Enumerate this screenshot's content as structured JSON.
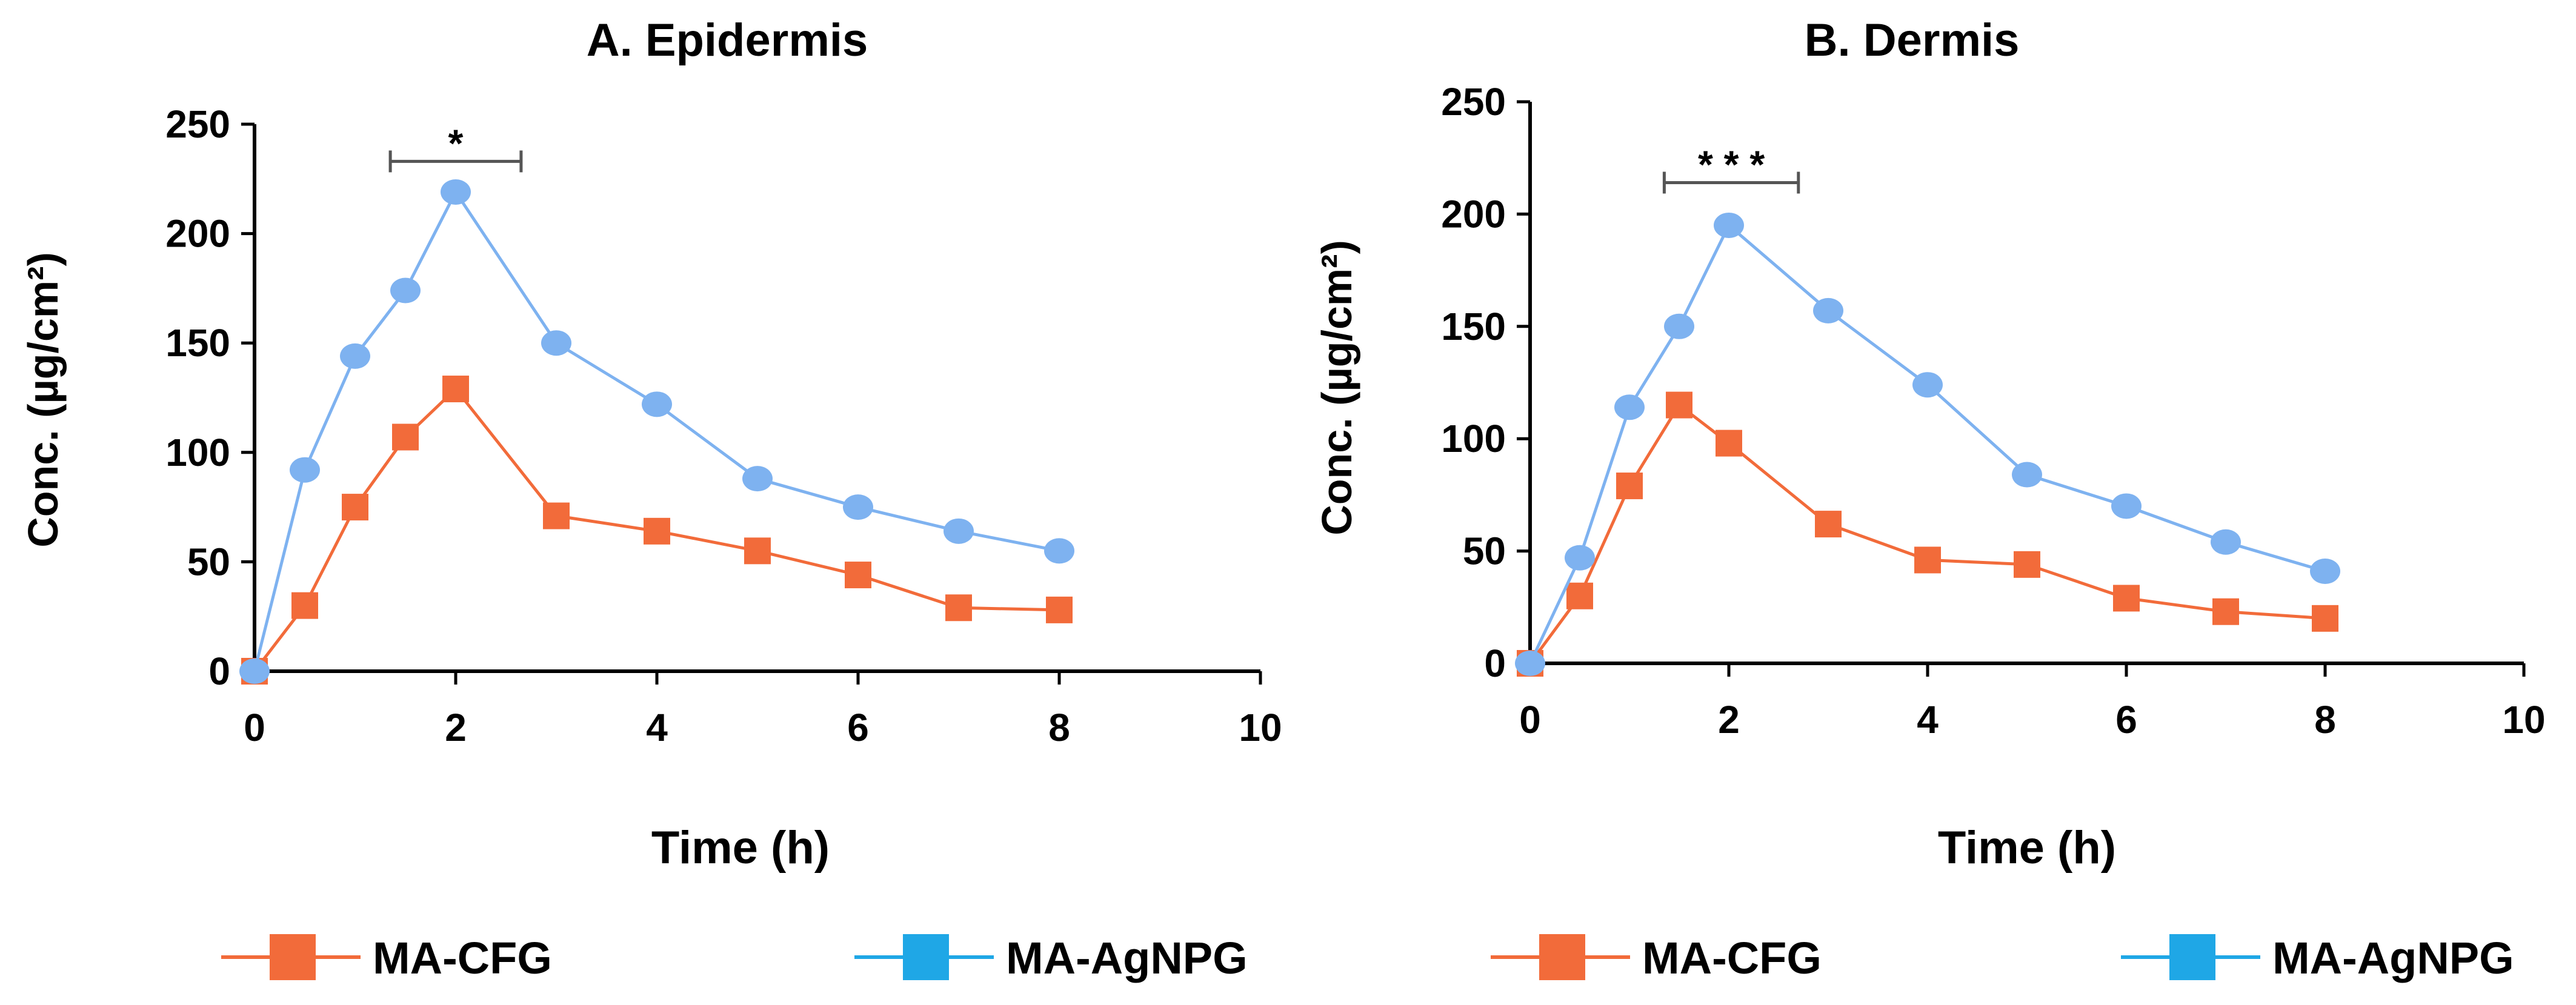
{
  "colors": {
    "cfg": "#F26B3A",
    "agnpg": "#7EB2F0",
    "legend_agnpg": "#1FA7E6",
    "axis": "#000000",
    "bracket": "#555555"
  },
  "legend": [
    {
      "label": "MA-CFG",
      "color": "#F26B3A"
    },
    {
      "label": "MA-AgNPG",
      "color": "#1FA7E6"
    },
    {
      "label": "MA-CFG",
      "color": "#F26B3A"
    },
    {
      "label": "MA-AgNPG",
      "color": "#1FA7E6"
    }
  ],
  "chart_data": [
    {
      "type": "line",
      "title": "A. Epidermis",
      "xlabel": "Time (h)",
      "ylabel": "Conc. (µg/cm²)",
      "xlim": [
        0,
        10
      ],
      "ylim": [
        0,
        250
      ],
      "xticks": [
        0,
        2,
        4,
        6,
        8,
        10
      ],
      "yticks": [
        0,
        50,
        100,
        150,
        200,
        250
      ],
      "significance": {
        "label": "*",
        "x_start": 1.35,
        "x_end": 2.65,
        "y": 233
      },
      "series": [
        {
          "name": "MA-CFG",
          "marker": "square",
          "color": "#F26B3A",
          "x": [
            0,
            0.5,
            1,
            1.5,
            2,
            3,
            4,
            5,
            6,
            7,
            8
          ],
          "y": [
            0,
            30,
            75,
            107,
            129,
            71,
            64,
            55,
            44,
            29,
            28
          ]
        },
        {
          "name": "MA-AgNPG",
          "marker": "circle",
          "color": "#7EB2F0",
          "x": [
            0,
            0.5,
            1,
            1.5,
            2,
            3,
            4,
            5,
            6,
            7,
            8
          ],
          "y": [
            0,
            92,
            144,
            174,
            219,
            150,
            122,
            88,
            75,
            64,
            55
          ]
        }
      ]
    },
    {
      "type": "line",
      "title": "B. Dermis",
      "xlabel": "Time (h)",
      "ylabel": "Conc. (µg/cm²)",
      "xlim": [
        0,
        10
      ],
      "ylim": [
        0,
        250
      ],
      "xticks": [
        0,
        2,
        4,
        6,
        8,
        10
      ],
      "yticks": [
        0,
        50,
        100,
        150,
        200,
        250
      ],
      "significance": {
        "label": "* * *",
        "x_start": 1.35,
        "x_end": 2.7,
        "y": 214
      },
      "series": [
        {
          "name": "MA-CFG",
          "marker": "square",
          "color": "#F26B3A",
          "x": [
            0,
            0.5,
            1,
            1.5,
            2,
            3,
            4,
            5,
            6,
            7,
            8
          ],
          "y": [
            0,
            30,
            79,
            115,
            98,
            62,
            46,
            44,
            29,
            23,
            20
          ]
        },
        {
          "name": "MA-AgNPG",
          "marker": "circle",
          "color": "#7EB2F0",
          "x": [
            0,
            0.5,
            1,
            1.5,
            2,
            3,
            4,
            5,
            6,
            7,
            8
          ],
          "y": [
            0,
            47,
            114,
            150,
            195,
            157,
            124,
            84,
            70,
            54,
            41
          ]
        }
      ]
    }
  ]
}
